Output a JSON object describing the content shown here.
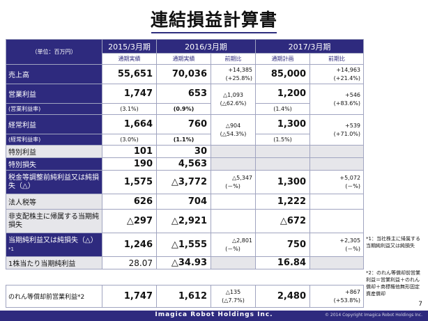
{
  "title": "連結損益計算書",
  "header": {
    "unit": "（単位：百万円）",
    "periods": [
      "2015/3月期",
      "2016/3月期",
      "2017/3月期"
    ],
    "sub": [
      "通期実績",
      "通期実績",
      "前期比",
      "通期計画",
      "前期比"
    ]
  },
  "rows": [
    {
      "label": "売上高",
      "v2015": "55,651",
      "v2016": "70,036",
      "chg16": [
        "+14,385",
        "(+25.8%)"
      ],
      "v2017": "85,000",
      "chg17": [
        "+14,963",
        "(+21.4%)"
      ]
    },
    {
      "label": "営業利益",
      "v2015": "1,747",
      "v2016": "653",
      "chg16": [
        "△1,093",
        "(△62.6%)"
      ],
      "v2017": "1,200",
      "chg17": [
        "+546",
        "(+83.6%)"
      ]
    },
    {
      "label": "(営業利益率)",
      "v2015": "(3.1%)",
      "v2016": "(0.9%)",
      "v2017": "(1.4%)"
    },
    {
      "label": "経常利益",
      "v2015": "1,664",
      "v2016": "760",
      "chg16": [
        "△904",
        "(△54.3%)"
      ],
      "v2017": "1,300",
      "chg17": [
        "+539",
        "(+71.0%)"
      ]
    },
    {
      "label": "(経常利益率)",
      "v2015": "(3.0%)",
      "v2016": "(1.1%)",
      "v2017": "(1.5%)"
    },
    {
      "label": "特別利益",
      "v2015": "101",
      "v2016": "30"
    },
    {
      "label": "特別損失",
      "v2015": "190",
      "v2016": "4,563"
    },
    {
      "label": "税金等調整前純利益又は純損失（△）",
      "v2015": "1,575",
      "v2016": "△3,772",
      "chg16": [
        "△5,347",
        "(－%)"
      ],
      "v2017": "1,300",
      "chg17": [
        "+5,072",
        "(－%)"
      ]
    },
    {
      "label": "法人税等",
      "v2015": "626",
      "v2016": "704",
      "v2017": "1,222"
    },
    {
      "label": "非支配株主に帰属する当期純損失",
      "v2015": "△297",
      "v2016": "△2,921",
      "v2017": "△672"
    },
    {
      "label": "当期純利益又は純損失（△）",
      "label_mark": "*1",
      "v2015": "1,246",
      "v2016": "△1,555",
      "chg16": [
        "△2,801",
        "(－%)"
      ],
      "v2017": "750",
      "chg17": [
        "+2,305",
        "(－%)"
      ]
    },
    {
      "label": "1株当たり当期純利益",
      "v2015": "28.07",
      "v2016": "△34.93",
      "v2017": "16.84"
    }
  ],
  "goodwill_row": {
    "label": "のれん等償却前営業利益*2",
    "v2015": "1,747",
    "v2016": "1,612",
    "chg16": [
      "△135",
      "(△7.7%)"
    ],
    "v2017": "2,480",
    "chg17": [
      "+867",
      "(+53.8%)"
    ]
  },
  "notes": {
    "n1": [
      "*1：当社株主に帰属する",
      "当期純利益又は純損失"
    ],
    "n2": [
      "*2：のれん等償却前営業",
      "利益＝営業利益＋のれん",
      "償却＋商標権他無形固定",
      "資産償却"
    ]
  },
  "page_number": "7",
  "footer": {
    "brand": "Imagica Robot Holdings Inc.",
    "copyright": "© 2014 Copyright Imagica Robot Holdings Inc."
  },
  "colors": {
    "brand_navy": "#2e2a7e",
    "label_grey": "#e6e6ea"
  }
}
